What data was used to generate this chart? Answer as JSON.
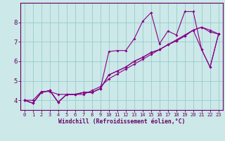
{
  "xlabel": "Windchill (Refroidissement éolien,°C)",
  "bg_color": "#cce8e8",
  "line_color": "#880088",
  "grid_color": "#99cccc",
  "axis_color": "#660066",
  "spine_color": "#660066",
  "xlim": [
    -0.5,
    23.5
  ],
  "ylim": [
    3.5,
    9.0
  ],
  "yticks": [
    4,
    5,
    6,
    7,
    8
  ],
  "xticks": [
    0,
    1,
    2,
    3,
    4,
    5,
    6,
    7,
    8,
    9,
    10,
    11,
    12,
    13,
    14,
    15,
    16,
    17,
    18,
    19,
    20,
    21,
    22,
    23
  ],
  "series": [
    [
      4.0,
      3.85,
      4.4,
      4.5,
      3.9,
      4.3,
      4.3,
      4.4,
      4.4,
      4.6,
      6.5,
      6.55,
      6.55,
      7.15,
      8.05,
      8.5,
      6.9,
      7.55,
      7.35,
      8.55,
      8.55,
      6.6,
      5.7,
      7.4
    ],
    [
      4.0,
      3.85,
      4.4,
      4.5,
      3.9,
      4.3,
      4.3,
      4.4,
      4.4,
      4.6,
      5.3,
      5.5,
      5.7,
      6.0,
      6.2,
      6.45,
      6.6,
      6.85,
      7.05,
      7.3,
      7.6,
      7.75,
      7.6,
      7.4
    ],
    [
      4.0,
      4.0,
      4.45,
      4.45,
      4.3,
      4.3,
      4.3,
      4.3,
      4.5,
      4.7,
      5.1,
      5.35,
      5.6,
      5.85,
      6.1,
      6.35,
      6.6,
      6.85,
      7.1,
      7.35,
      7.6,
      7.75,
      7.5,
      7.4
    ],
    [
      4.0,
      3.85,
      4.4,
      4.5,
      3.9,
      4.3,
      4.3,
      4.4,
      4.4,
      4.6,
      5.3,
      5.5,
      5.7,
      6.0,
      6.2,
      6.45,
      6.6,
      6.85,
      7.05,
      7.3,
      7.6,
      6.6,
      5.7,
      7.4
    ]
  ],
  "xlabel_fontsize": 5.8,
  "tick_fontsize": 5.0,
  "marker_size": 2.0,
  "linewidth": 0.8
}
